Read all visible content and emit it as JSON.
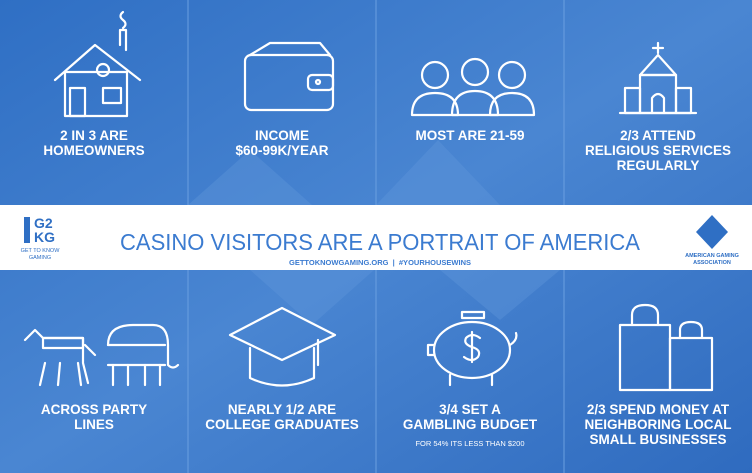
{
  "header": {
    "logo_left": {
      "line1": "G2",
      "line2": "KG",
      "tagline_lines": [
        "GET TO KNOW",
        "GAMING"
      ]
    },
    "title": "CASINO VISITORS ARE A PORTRAIT OF AMERICA",
    "subtitle": "GETTOKNOWGAMING.ORG  |  #YOURHOUSEWINS",
    "logo_right": {
      "tagline_lines": [
        "AMERICAN GAMING",
        "ASSOCIATION"
      ]
    }
  },
  "facts_top": [
    {
      "lines": [
        "2 IN 3 ARE",
        "HOMEOWNERS"
      ]
    },
    {
      "lines": [
        "INCOME",
        "$60-99K/YEAR"
      ]
    },
    {
      "lines": [
        "MOST ARE 21-59"
      ]
    },
    {
      "lines": [
        "2/3 ATTEND",
        "RELIGIOUS SERVICES",
        "REGULARLY"
      ]
    }
  ],
  "facts_bottom": [
    {
      "lines": [
        "ACROSS PARTY",
        "LINES"
      ]
    },
    {
      "lines": [
        "NEARLY 1/2 ARE",
        "COLLEGE GRADUATES"
      ]
    },
    {
      "lines": [
        "3/4 SET A",
        "GAMBLING BUDGET"
      ],
      "note": "FOR 54% ITS LESS THAN $200"
    },
    {
      "lines": [
        "2/3 SPEND MONEY AT",
        "NEIGHBORING LOCAL",
        "SMALL BUSINESSES"
      ]
    }
  ]
}
